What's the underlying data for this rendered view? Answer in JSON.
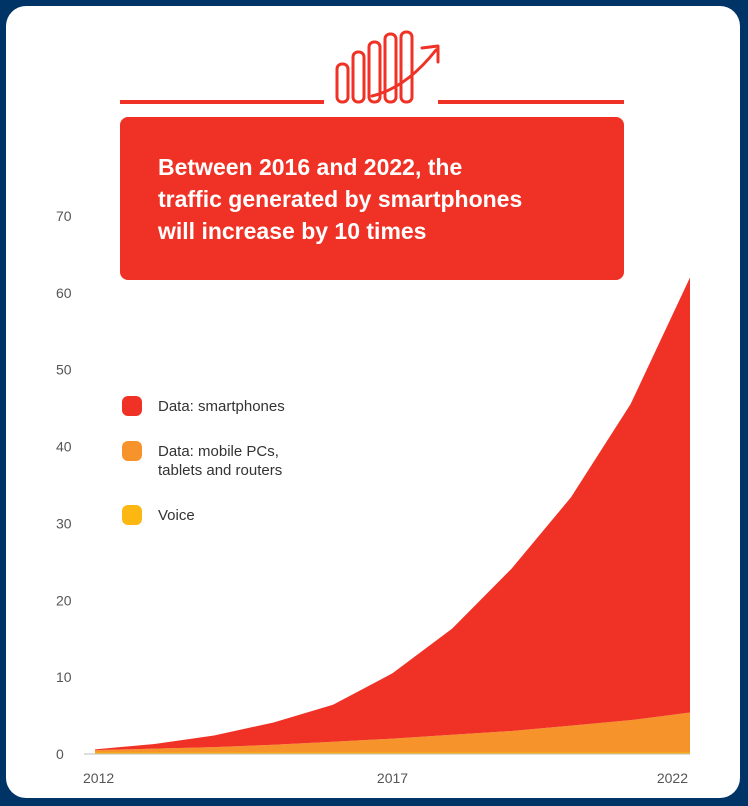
{
  "callout": {
    "lines": [
      "Between 2016 and 2022, the",
      "traffic generated by smartphones",
      "will increase by 10 times"
    ]
  },
  "colors": {
    "smartphones": "#f03226",
    "mobile_pcs": "#f7932b",
    "voice": "#fcb712",
    "page_background": "#003366",
    "callout_background": "#f03226"
  },
  "icon": "bar-chart-growth-arrow-icon",
  "chart_data": {
    "type": "area",
    "stacked": true,
    "x": [
      2012,
      2013,
      2014,
      2015,
      2016,
      2017,
      2018,
      2019,
      2020,
      2021,
      2022
    ],
    "series": [
      {
        "name": "Voice",
        "color": "#fcb712",
        "values": [
          0.2,
          0.2,
          0.2,
          0.2,
          0.2,
          0.2,
          0.2,
          0.2,
          0.2,
          0.2,
          0.2
        ]
      },
      {
        "name": "Data: mobile PCs, tablets and routers",
        "color": "#f7932b",
        "values": [
          0.3,
          0.5,
          0.7,
          1.0,
          1.4,
          1.8,
          2.3,
          2.8,
          3.5,
          4.2,
          5.2
        ]
      },
      {
        "name": "Data: smartphones",
        "color": "#f03226",
        "values": [
          0.1,
          0.6,
          1.5,
          2.9,
          4.8,
          8.5,
          13.8,
          21.1,
          29.7,
          41.1,
          56.6
        ]
      }
    ],
    "y_ticks": [
      0,
      10,
      20,
      30,
      40,
      50,
      60,
      70
    ],
    "x_tick_labels": [
      "2012",
      "2017",
      "2022"
    ],
    "ylim": [
      0,
      70
    ],
    "xlim": [
      2012,
      2022
    ],
    "legend_position": "middle-left",
    "legend_items": [
      {
        "label": "Data: smartphones",
        "lines": [
          "Data: smartphones"
        ],
        "color": "#f03226"
      },
      {
        "label": "Data: mobile PCs, tablets and routers",
        "lines": [
          "Data: mobile PCs,",
          "tablets and routers"
        ],
        "color": "#f7932b"
      },
      {
        "label": "Voice",
        "lines": [
          "Voice"
        ],
        "color": "#fcb712"
      }
    ],
    "grid": false
  }
}
